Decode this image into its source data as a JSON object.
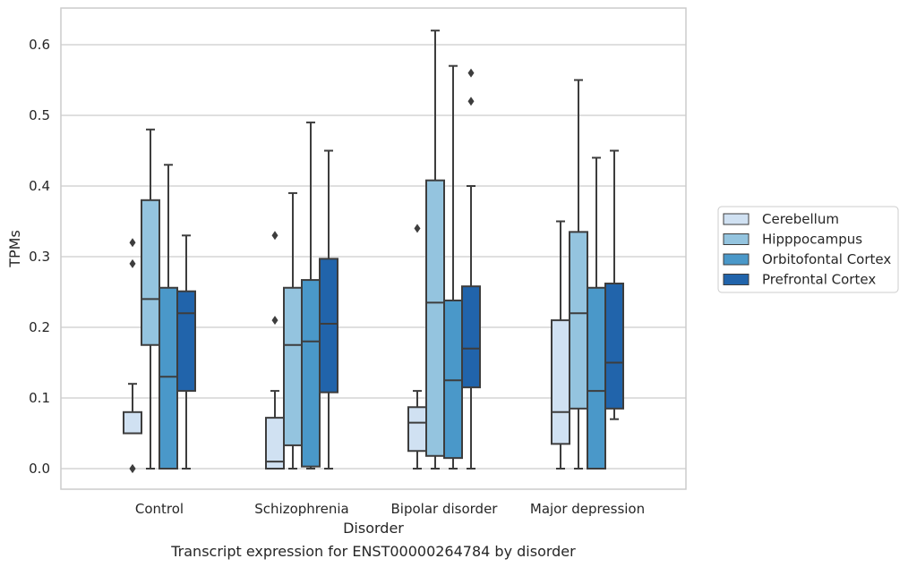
{
  "chart_data": {
    "type": "boxplot",
    "caption": "Transcript expression for ENST00000264784 by disorder",
    "xlabel": "Disorder",
    "ylabel": "TPMs",
    "ylim": [
      -0.03,
      0.655
    ],
    "yticks": [
      0.0,
      0.1,
      0.2,
      0.3,
      0.4,
      0.5,
      0.6
    ],
    "ytick_labels": [
      "0.0",
      "0.1",
      "0.2",
      "0.3",
      "0.4",
      "0.5",
      "0.6"
    ],
    "grid": true,
    "legend_position": "right",
    "categories": [
      "Control",
      "Schizophrenia",
      "Bipolar disorder",
      "Major depression"
    ],
    "series": [
      {
        "name": "Cerebellum",
        "color": "#d0e1f2",
        "boxes": [
          {
            "whislo": 0.05,
            "q1": 0.05,
            "med": 0.05,
            "q3": 0.08,
            "whishi": 0.12,
            "fliers": [
              0.32,
              0.29,
              0.0,
              0.0
            ]
          },
          {
            "whislo": 0.0,
            "q1": 0.0,
            "med": 0.01,
            "q3": 0.072,
            "whishi": 0.11,
            "fliers": [
              0.33,
              0.21
            ]
          },
          {
            "whislo": 0.0,
            "q1": 0.025,
            "med": 0.065,
            "q3": 0.087,
            "whishi": 0.11,
            "fliers": [
              0.34
            ]
          },
          {
            "whislo": 0.0,
            "q1": 0.035,
            "med": 0.08,
            "q3": 0.21,
            "whishi": 0.35,
            "fliers": []
          }
        ]
      },
      {
        "name": "Hipppocampus",
        "color": "#94c4df",
        "boxes": [
          {
            "whislo": 0.0,
            "q1": 0.175,
            "med": 0.24,
            "q3": 0.38,
            "whishi": 0.48,
            "fliers": []
          },
          {
            "whislo": 0.0,
            "q1": 0.033,
            "med": 0.175,
            "q3": 0.256,
            "whishi": 0.39,
            "fliers": []
          },
          {
            "whislo": 0.0,
            "q1": 0.018,
            "med": 0.235,
            "q3": 0.408,
            "whishi": 0.62,
            "fliers": []
          },
          {
            "whislo": 0.0,
            "q1": 0.085,
            "med": 0.22,
            "q3": 0.335,
            "whishi": 0.55,
            "fliers": []
          }
        ]
      },
      {
        "name": "Orbitofontal Cortex",
        "color": "#4a98c9",
        "boxes": [
          {
            "whislo": 0.0,
            "q1": 0.0,
            "med": 0.13,
            "q3": 0.256,
            "whishi": 0.43,
            "fliers": []
          },
          {
            "whislo": 0.0,
            "q1": 0.003,
            "med": 0.18,
            "q3": 0.267,
            "whishi": 0.49,
            "fliers": []
          },
          {
            "whislo": 0.0,
            "q1": 0.015,
            "med": 0.125,
            "q3": 0.238,
            "whishi": 0.57,
            "fliers": []
          },
          {
            "whislo": 0.0,
            "q1": 0.0,
            "med": 0.11,
            "q3": 0.256,
            "whishi": 0.44,
            "fliers": []
          }
        ]
      },
      {
        "name": "Prefrontal Cortex",
        "color": "#2164ab",
        "boxes": [
          {
            "whislo": 0.0,
            "q1": 0.11,
            "med": 0.22,
            "q3": 0.251,
            "whishi": 0.33,
            "fliers": []
          },
          {
            "whislo": 0.0,
            "q1": 0.108,
            "med": 0.205,
            "q3": 0.297,
            "whishi": 0.45,
            "fliers": []
          },
          {
            "whislo": 0.0,
            "q1": 0.115,
            "med": 0.17,
            "q3": 0.258,
            "whishi": 0.4,
            "fliers": [
              0.56,
              0.52
            ]
          },
          {
            "whislo": 0.07,
            "q1": 0.085,
            "med": 0.15,
            "q3": 0.262,
            "whishi": 0.45,
            "fliers": []
          }
        ]
      }
    ]
  },
  "styles": {
    "line_color": "#3d3d3d",
    "grid_color": "#cccccc",
    "frame_color": "#cccccc"
  }
}
